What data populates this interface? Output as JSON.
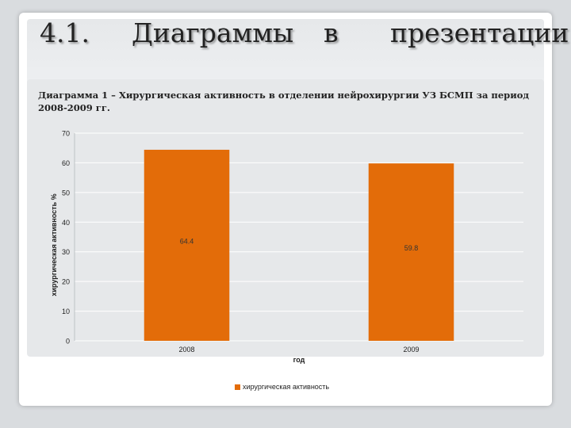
{
  "slide": {
    "title_number": "4.1.",
    "title_word1": "Диаграммы",
    "title_word2": "в",
    "title_word3": "презентации",
    "caption": "Диаграмма 1 – Хирургическая активность в отделении нейрохирургии УЗ БСМП за период 2008-2009 гг."
  },
  "colors": {
    "bar": "#e36c09",
    "panel": "#e6e8ea",
    "grid": "#ffffff"
  },
  "chart_data": {
    "type": "bar",
    "categories": [
      "2008",
      "2009"
    ],
    "series": [
      {
        "name": "хирургическая активность",
        "values": [
          64.4,
          59.8
        ],
        "labels": [
          "64.4",
          "59.8"
        ]
      }
    ],
    "title": "",
    "xlabel": "год",
    "ylabel": "хирургическая активность %",
    "ylim": [
      0,
      70
    ],
    "yticks": [
      0,
      10,
      20,
      30,
      40,
      50,
      60,
      70
    ],
    "grid": true,
    "legend": "bottom"
  }
}
